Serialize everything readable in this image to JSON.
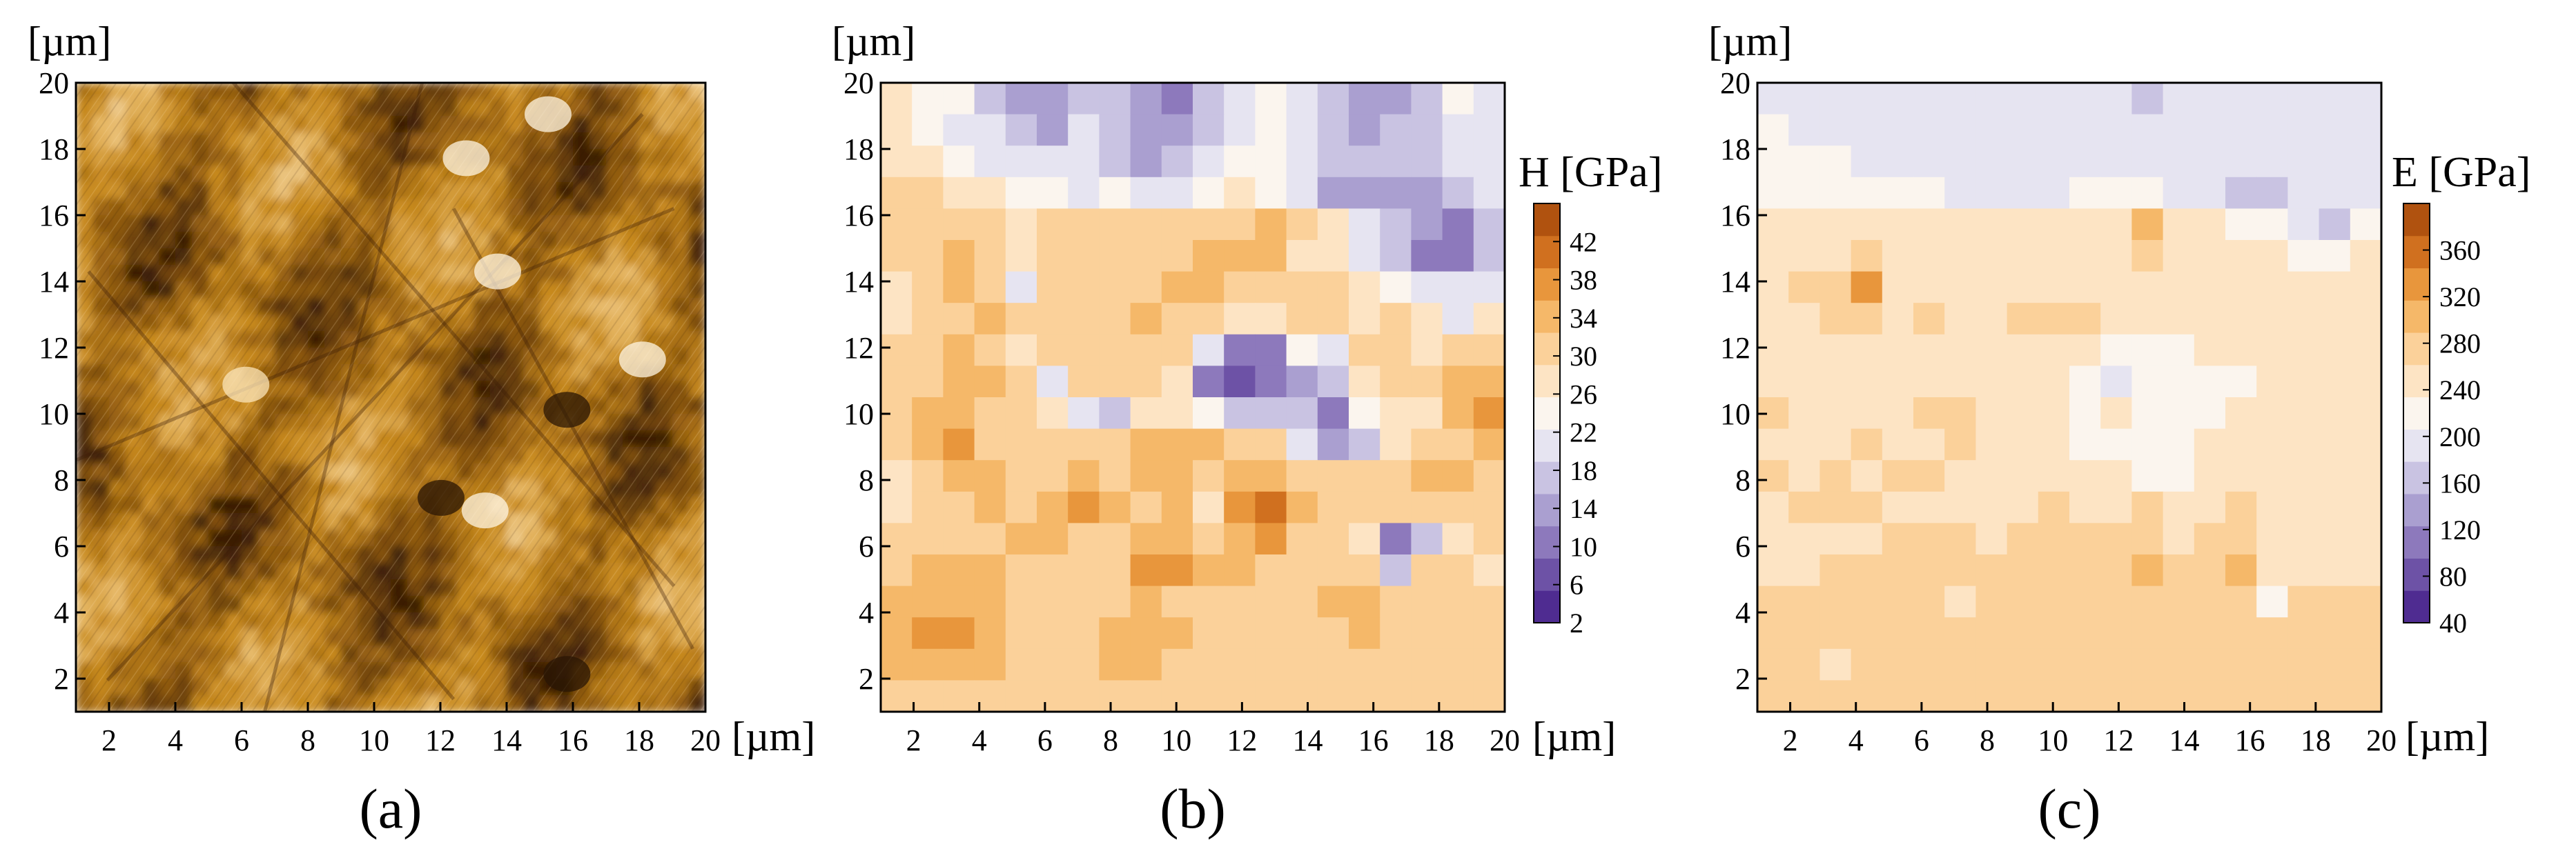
{
  "figure": {
    "panels": [
      {
        "label": "(a)",
        "kind": "afm-topography"
      },
      {
        "label": "(b)",
        "kind": "hardness-map"
      },
      {
        "label": "(c)",
        "kind": "modulus-map"
      }
    ]
  },
  "chart_data": [
    {
      "type": "heatmap",
      "panel_label": "(a)",
      "xlabel": "[µm]",
      "ylabel": "[µm]",
      "xlim": [
        1,
        20
      ],
      "ylim": [
        1,
        20
      ],
      "xticks": [
        2,
        4,
        6,
        8,
        10,
        12,
        14,
        16,
        18,
        20
      ],
      "yticks": [
        2,
        4,
        6,
        8,
        10,
        12,
        14,
        16,
        18,
        20
      ],
      "colormap": [
        "#3a1f06",
        "#8a560f",
        "#c7891e",
        "#e6b765",
        "#fbf0da"
      ]
    },
    {
      "type": "heatmap",
      "panel_label": "(b)",
      "xlabel": "[µm]",
      "ylabel": "[µm]",
      "xlim": [
        1,
        20
      ],
      "ylim": [
        1,
        20
      ],
      "xticks": [
        2,
        4,
        6,
        8,
        10,
        12,
        14,
        16,
        18,
        20
      ],
      "yticks": [
        2,
        4,
        6,
        8,
        10,
        12,
        14,
        16,
        18,
        20
      ],
      "colorbar": {
        "title": "H [GPa]",
        "ticks": [
          2,
          6,
          10,
          14,
          18,
          22,
          26,
          30,
          34,
          38,
          42
        ],
        "range": [
          2,
          46
        ],
        "colors": [
          "#4f2c91",
          "#6d52a6",
          "#8d79bc",
          "#aa9fd0",
          "#c9c3e2",
          "#e6e4f1",
          "#fbf5ee",
          "#fde4c4",
          "#fbd19a",
          "#f5b869",
          "#e8963c",
          "#d0701f",
          "#b0520f"
        ]
      },
      "grid": [
        [
          27,
          25,
          23,
          17,
          14,
          13,
          18,
          16,
          14,
          12,
          16,
          19,
          23,
          20,
          17,
          14,
          15,
          16,
          24,
          22
        ],
        [
          26,
          24,
          22,
          19,
          16,
          15,
          19,
          17,
          15,
          13,
          17,
          20,
          24,
          21,
          18,
          15,
          16,
          18,
          22,
          22
        ],
        [
          28,
          27,
          25,
          22,
          20,
          19,
          20,
          18,
          14,
          16,
          21,
          24,
          25,
          19,
          16,
          16,
          18,
          17,
          20,
          21
        ],
        [
          30,
          30,
          29,
          27,
          25,
          24,
          22,
          23,
          21,
          22,
          24,
          26,
          25,
          19,
          15,
          13,
          14,
          15,
          18,
          22
        ],
        [
          31,
          32,
          31,
          30,
          29,
          31,
          30,
          31,
          30,
          31,
          31,
          30,
          33,
          31,
          28,
          20,
          18,
          13,
          10,
          18
        ],
        [
          30,
          31,
          34,
          32,
          29,
          32,
          31,
          30,
          30,
          31,
          33,
          34,
          33,
          29,
          28,
          22,
          17,
          10,
          10,
          16
        ],
        [
          28,
          31,
          33,
          32,
          22,
          30,
          32,
          31,
          30,
          33,
          34,
          32,
          30,
          32,
          30,
          27,
          24,
          20,
          21,
          20
        ],
        [
          29,
          31,
          32,
          33,
          32,
          30,
          30,
          31,
          33,
          32,
          30,
          26,
          28,
          30,
          30,
          28,
          30,
          27,
          22,
          28
        ],
        [
          30,
          31,
          33,
          31,
          28,
          30,
          31,
          31,
          31,
          30,
          22,
          10,
          12,
          24,
          22,
          30,
          31,
          28,
          30,
          31
        ],
        [
          31,
          32,
          34,
          33,
          30,
          22,
          30,
          30,
          31,
          28,
          12,
          6,
          10,
          14,
          16,
          27,
          30,
          30,
          34,
          35
        ],
        [
          32,
          33,
          34,
          31,
          30,
          29,
          22,
          18,
          27,
          27,
          24,
          16,
          18,
          16,
          12,
          24,
          28,
          29,
          33,
          36
        ],
        [
          30,
          33,
          36,
          32,
          30,
          30,
          32,
          30,
          34,
          33,
          33,
          30,
          30,
          22,
          14,
          18,
          27,
          30,
          32,
          33
        ],
        [
          28,
          31,
          33,
          34,
          30,
          31,
          33,
          31,
          35,
          33,
          31,
          33,
          34,
          31,
          30,
          30,
          32,
          33,
          33,
          31
        ],
        [
          29,
          30,
          31,
          33,
          32,
          34,
          36,
          33,
          31,
          33,
          29,
          36,
          40,
          33,
          30,
          30,
          30,
          32,
          31,
          30
        ],
        [
          30,
          32,
          32,
          31,
          34,
          33,
          32,
          30,
          33,
          34,
          31,
          34,
          36,
          32,
          30,
          27,
          10,
          16,
          27,
          30
        ],
        [
          31,
          33,
          33,
          34,
          30,
          32,
          32,
          31,
          36,
          38,
          33,
          34,
          32,
          31,
          31,
          30,
          16,
          30,
          30,
          29
        ],
        [
          33,
          35,
          34,
          33,
          31,
          30,
          30,
          32,
          33,
          32,
          31,
          31,
          30,
          30,
          33,
          34,
          31,
          31,
          30,
          30
        ],
        [
          34,
          36,
          38,
          33,
          31,
          30,
          32,
          34,
          34,
          33,
          31,
          31,
          31,
          30,
          32,
          33,
          30,
          30,
          31,
          30
        ],
        [
          33,
          34,
          35,
          33,
          31,
          30,
          31,
          33,
          34,
          32,
          30,
          30,
          30,
          30,
          30,
          30,
          30,
          30,
          30,
          30
        ],
        [
          30,
          31,
          32,
          31,
          30,
          30,
          30,
          30,
          31,
          31,
          30,
          30,
          30,
          30,
          30,
          30,
          30,
          30,
          30,
          30
        ]
      ]
    },
    {
      "type": "heatmap",
      "panel_label": "(c)",
      "xlabel": "[µm]",
      "ylabel": "[µm]",
      "xlim": [
        1,
        20
      ],
      "ylim": [
        1,
        20
      ],
      "xticks": [
        2,
        4,
        6,
        8,
        10,
        12,
        14,
        16,
        18,
        20
      ],
      "yticks": [
        2,
        4,
        6,
        8,
        10,
        12,
        14,
        16,
        18,
        20
      ],
      "colorbar": {
        "title": "E [GPa]",
        "ticks": [
          40,
          80,
          120,
          160,
          200,
          240,
          280,
          320,
          360
        ],
        "range": [
          40,
          400
        ],
        "colors": [
          "#4f2c91",
          "#6d52a6",
          "#8d79bc",
          "#aa9fd0",
          "#c9c3e2",
          "#e6e4f1",
          "#fbf5ee",
          "#fde4c4",
          "#fbd19a",
          "#f5b869",
          "#e8963c",
          "#d0701f",
          "#b0520f"
        ]
      },
      "grid": [
        [
          205,
          200,
          195,
          190,
          190,
          195,
          195,
          190,
          185,
          190,
          200,
          205,
          175,
          190,
          200,
          200,
          195,
          195,
          190,
          185
        ],
        [
          210,
          205,
          195,
          190,
          190,
          190,
          190,
          185,
          185,
          185,
          190,
          195,
          200,
          205,
          205,
          200,
          195,
          190,
          180,
          190
        ],
        [
          220,
          215,
          210,
          205,
          200,
          200,
          195,
          190,
          190,
          190,
          195,
          205,
          205,
          200,
          200,
          195,
          190,
          195,
          185,
          200
        ],
        [
          225,
          220,
          215,
          215,
          210,
          210,
          205,
          200,
          200,
          205,
          210,
          215,
          215,
          205,
          200,
          175,
          170,
          180,
          190,
          200
        ],
        [
          240,
          240,
          240,
          245,
          250,
          250,
          250,
          245,
          250,
          245,
          250,
          250,
          290,
          250,
          240,
          230,
          220,
          180,
          175,
          210
        ],
        [
          255,
          255,
          260,
          265,
          255,
          255,
          250,
          255,
          250,
          255,
          255,
          260,
          265,
          255,
          255,
          250,
          245,
          215,
          230,
          255
        ],
        [
          260,
          265,
          265,
          320,
          260,
          255,
          255,
          260,
          255,
          260,
          255,
          250,
          250,
          255,
          250,
          255,
          250,
          250,
          250,
          250
        ],
        [
          255,
          260,
          265,
          270,
          260,
          265,
          260,
          260,
          265,
          270,
          265,
          255,
          260,
          255,
          255,
          255,
          255,
          255,
          255,
          260
        ],
        [
          250,
          260,
          255,
          250,
          255,
          255,
          260,
          255,
          240,
          240,
          235,
          210,
          220,
          225,
          235,
          240,
          245,
          250,
          255,
          260
        ],
        [
          255,
          255,
          245,
          245,
          245,
          240,
          245,
          250,
          245,
          235,
          225,
          205,
          215,
          215,
          230,
          225,
          240,
          250,
          255,
          260
        ],
        [
          265,
          260,
          260,
          255,
          260,
          265,
          270,
          255,
          245,
          235,
          215,
          245,
          220,
          215,
          225,
          240,
          240,
          255,
          260,
          260
        ],
        [
          260,
          260,
          255,
          265,
          260,
          260,
          265,
          260,
          240,
          245,
          230,
          210,
          215,
          220,
          250,
          250,
          250,
          255,
          260,
          260
        ],
        [
          265,
          260,
          270,
          260,
          262,
          262,
          255,
          245,
          260,
          255,
          250,
          235,
          225,
          230,
          250,
          255,
          255,
          255,
          250,
          260
        ],
        [
          260,
          262,
          262,
          265,
          260,
          260,
          255,
          260,
          260,
          262,
          258,
          260,
          262,
          260,
          255,
          262,
          255,
          255,
          255,
          260
        ],
        [
          255,
          260,
          260,
          255,
          262,
          262,
          262,
          260,
          265,
          270,
          265,
          262,
          275,
          260,
          262,
          268,
          255,
          255,
          255,
          255
        ],
        [
          258,
          260,
          262,
          265,
          270,
          268,
          262,
          262,
          270,
          268,
          262,
          270,
          290,
          270,
          262,
          310,
          255,
          258,
          258,
          255
        ],
        [
          262,
          262,
          265,
          268,
          268,
          262,
          258,
          262,
          268,
          268,
          265,
          262,
          262,
          262,
          262,
          262,
          230,
          262,
          262,
          262
        ],
        [
          262,
          265,
          268,
          272,
          270,
          262,
          265,
          262,
          262,
          262,
          265,
          262,
          262,
          262,
          262,
          262,
          262,
          262,
          262,
          262
        ],
        [
          270,
          265,
          260,
          262,
          262,
          262,
          262,
          262,
          262,
          262,
          262,
          262,
          262,
          262,
          262,
          262,
          262,
          262,
          262,
          262
        ],
        [
          262,
          262,
          262,
          262,
          262,
          262,
          262,
          262,
          262,
          262,
          262,
          262,
          262,
          262,
          262,
          262,
          262,
          262,
          262,
          262
        ]
      ]
    }
  ]
}
